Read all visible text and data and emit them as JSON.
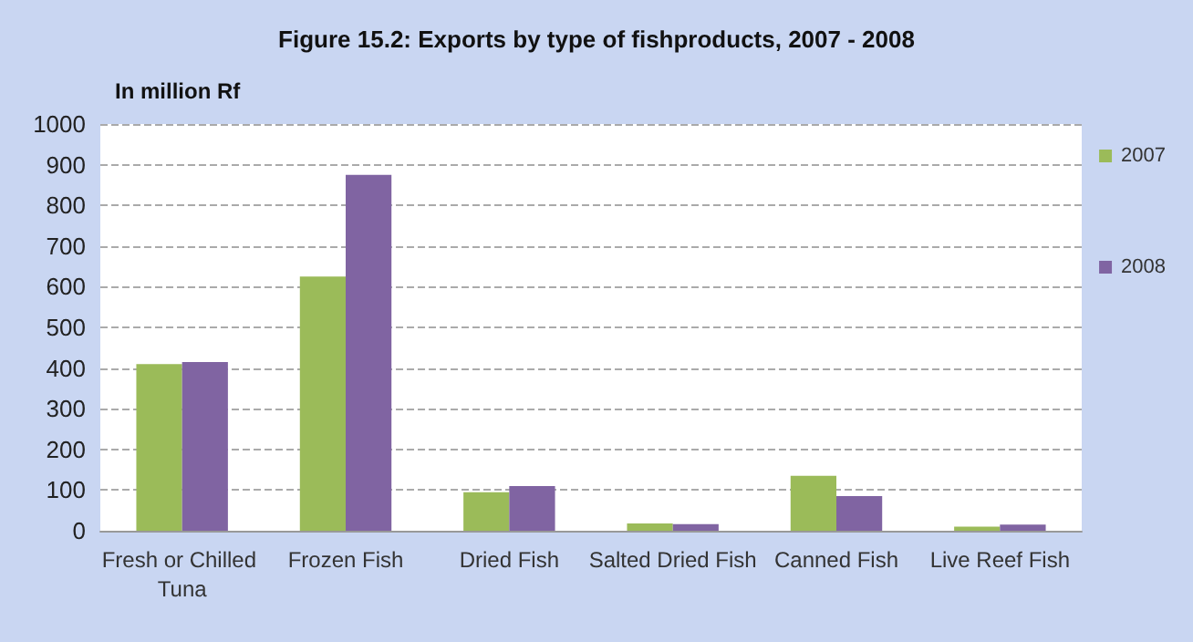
{
  "chart_data": {
    "type": "bar",
    "title": "Figure 15.2: Exports by type of fishproducts, 2007 - 2008",
    "ylabel": "In million Rf",
    "categories": [
      "Fresh or Chilled Tuna",
      "Frozen Fish",
      "Dried Fish",
      "Salted Dried Fish",
      "Canned Fish",
      "Live Reef Fish"
    ],
    "series": [
      {
        "name": "2007",
        "color": "#9bbb59",
        "values": [
          410,
          625,
          95,
          18,
          135,
          10
        ]
      },
      {
        "name": "2008",
        "color": "#8064a2",
        "values": [
          415,
          875,
          110,
          16,
          85,
          15
        ]
      }
    ],
    "ylim": [
      0,
      1000
    ],
    "yticks": [
      0,
      100,
      200,
      300,
      400,
      500,
      600,
      700,
      800,
      900,
      1000
    ],
    "grid": "y",
    "legend": "right"
  }
}
